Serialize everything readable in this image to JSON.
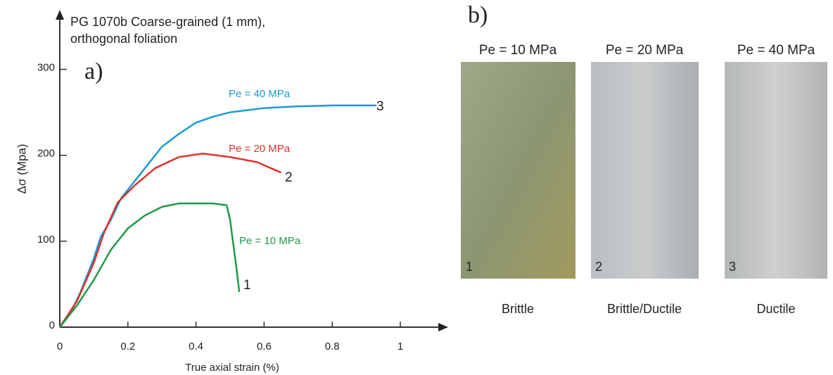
{
  "chart_data": {
    "type": "line",
    "title": [
      "PG 1070b Coarse-grained (1 mm),",
      "orthogonal foliation"
    ],
    "panel_label": "a)",
    "x_label": "True axial strain (%)",
    "y_label": "Δσ (Mpa)",
    "xlim": [
      0,
      1.12
    ],
    "ylim": [
      0,
      366
    ],
    "xticks": [
      0,
      0.2,
      0.4,
      0.6,
      0.8,
      1
    ],
    "yticks": [
      0,
      100,
      200,
      300
    ],
    "series": [
      {
        "name": "Pe = 40 MPa",
        "end_label": "3",
        "color": "#1a9ad6",
        "x": [
          0,
          0.03,
          0.06,
          0.1,
          0.12,
          0.15,
          0.18,
          0.22,
          0.26,
          0.3,
          0.35,
          0.4,
          0.45,
          0.5,
          0.6,
          0.7,
          0.8,
          0.93
        ],
        "values": [
          0,
          15,
          40,
          80,
          105,
          125,
          150,
          170,
          190,
          210,
          225,
          238,
          245,
          250,
          255,
          257,
          258,
          258
        ]
      },
      {
        "name": "Pe = 20 MPa",
        "end_label": "2",
        "color": "#e0312c",
        "x": [
          0,
          0.05,
          0.1,
          0.13,
          0.17,
          0.22,
          0.28,
          0.35,
          0.42,
          0.5,
          0.58,
          0.62,
          0.65
        ],
        "values": [
          0,
          30,
          75,
          110,
          145,
          165,
          185,
          198,
          202,
          198,
          192,
          185,
          180
        ]
      },
      {
        "name": "Pe = 10 MPa",
        "end_label": "1",
        "color": "#1f9a48",
        "x": [
          0,
          0.05,
          0.1,
          0.15,
          0.2,
          0.25,
          0.3,
          0.35,
          0.4,
          0.45,
          0.49,
          0.5,
          0.51,
          0.52,
          0.527
        ],
        "values": [
          0,
          25,
          55,
          90,
          115,
          130,
          140,
          144,
          144,
          144,
          142,
          125,
          95,
          65,
          41
        ]
      }
    ]
  },
  "panel_b": {
    "panel_label": "b)",
    "samples": [
      {
        "pressure": "Pe = 10 MPa",
        "number": "1",
        "behavior": "Brittle"
      },
      {
        "pressure": "Pe = 20 MPa",
        "number": "2",
        "behavior": "Brittle/Ductile"
      },
      {
        "pressure": "Pe = 40 MPa",
        "number": "3",
        "behavior": "Ductile"
      }
    ]
  }
}
